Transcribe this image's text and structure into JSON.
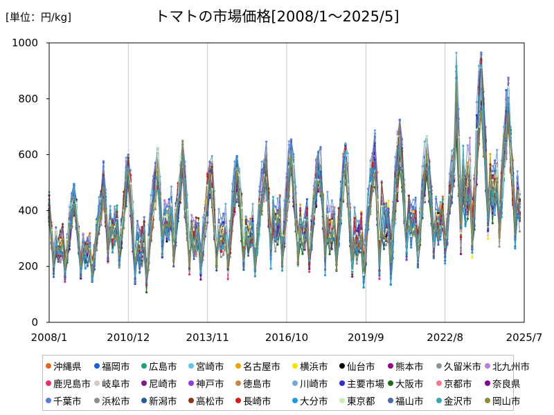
{
  "unit_label": "[単位：円/kg]",
  "title": "トマトの市場価格[2008/1～2025/5]",
  "chart_data": {
    "type": "line",
    "title": "トマトの市場価格[2008/1～2025/5]",
    "unit": "[単位：円/kg]",
    "xlabel": "",
    "ylabel": "",
    "x_ticks": [
      "2008/1",
      "2010/12",
      "2013/11",
      "2016/10",
      "2019/9",
      "2022/8",
      "2025/7"
    ],
    "x_range": [
      "2008/1",
      "2025/7"
    ],
    "y_ticks": [
      0,
      200,
      400,
      600,
      800,
      1000
    ],
    "ylim": [
      0,
      1000
    ],
    "grid": "vertical",
    "legend_position": "bottom",
    "approx_yearly_peak_max": [
      {
        "year": 2008,
        "value": 495
      },
      {
        "year": 2009,
        "value": 470
      },
      {
        "year": 2010,
        "value": 600
      },
      {
        "year": 2011,
        "value": 570
      },
      {
        "year": 2012,
        "value": 650
      },
      {
        "year": 2013,
        "value": 575
      },
      {
        "year": 2014,
        "value": 595
      },
      {
        "year": 2015,
        "value": 580
      },
      {
        "year": 2016,
        "value": 655
      },
      {
        "year": 2017,
        "value": 610
      },
      {
        "year": 2018,
        "value": 640
      },
      {
        "year": 2019,
        "value": 605
      },
      {
        "year": 2020,
        "value": 725
      },
      {
        "year": 2021,
        "value": 665
      },
      {
        "year": 2022,
        "value": 620
      },
      {
        "year": 2023,
        "value": 965
      },
      {
        "year": 2024,
        "value": 875
      },
      {
        "year": 2025,
        "value": 740
      }
    ],
    "approx_yearly_trough_min": [
      {
        "year": 2008,
        "value": 145
      },
      {
        "year": 2009,
        "value": 130
      },
      {
        "year": 2010,
        "value": 185
      },
      {
        "year": 2011,
        "value": 105
      },
      {
        "year": 2012,
        "value": 200
      },
      {
        "year": 2013,
        "value": 150
      },
      {
        "year": 2014,
        "value": 150
      },
      {
        "year": 2015,
        "value": 165
      },
      {
        "year": 2016,
        "value": 185
      },
      {
        "year": 2017,
        "value": 170
      },
      {
        "year": 2018,
        "value": 165
      },
      {
        "year": 2019,
        "value": 125
      },
      {
        "year": 2020,
        "value": 135
      },
      {
        "year": 2021,
        "value": 185
      },
      {
        "year": 2022,
        "value": 210
      },
      {
        "year": 2023,
        "value": 210
      },
      {
        "year": 2024,
        "value": 255
      },
      {
        "year": 2025,
        "value": 250
      }
    ],
    "series": [
      {
        "name": "沖縄県",
        "color": "#e8641e"
      },
      {
        "name": "福岡市",
        "color": "#1a5fe0"
      },
      {
        "name": "広島市",
        "color": "#1aa27a"
      },
      {
        "name": "宮崎市",
        "color": "#5fc4e8"
      },
      {
        "name": "名古屋市",
        "color": "#f0a400"
      },
      {
        "name": "横浜市",
        "color": "#f2e600"
      },
      {
        "name": "仙台市",
        "color": "#000000"
      },
      {
        "name": "熊本市",
        "color": "#9b008a"
      },
      {
        "name": "久留米市",
        "color": "#8c959b"
      },
      {
        "name": "北九州市",
        "color": "#b77ee0"
      },
      {
        "name": "鹿児島市",
        "color": "#e8306e"
      },
      {
        "name": "岐阜市",
        "color": "#d9c9bd"
      },
      {
        "name": "尼崎市",
        "color": "#7a1f80"
      },
      {
        "name": "神戸市",
        "color": "#8a3fe0"
      },
      {
        "name": "徳島市",
        "color": "#c28a4a"
      },
      {
        "name": "川崎市",
        "color": "#6fa8d9"
      },
      {
        "name": "主要市場",
        "color": "#2b2bd6"
      },
      {
        "name": "大阪市",
        "color": "#1d6b18"
      },
      {
        "name": "京都市",
        "color": "#f07a8e"
      },
      {
        "name": "奈良県",
        "color": "#880090"
      },
      {
        "name": "千葉市",
        "color": "#5a7ad9"
      },
      {
        "name": "浜松市",
        "color": "#8f8f8f"
      },
      {
        "name": "新潟市",
        "color": "#1f5f9a"
      },
      {
        "name": "高松市",
        "color": "#8a3a1a"
      },
      {
        "name": "長崎市",
        "color": "#d91a1a"
      },
      {
        "name": "大分市",
        "color": "#1a9ce8"
      },
      {
        "name": "東京都",
        "color": "#c8f0b4"
      },
      {
        "name": "福山市",
        "color": "#4a6aa8"
      },
      {
        "name": "金沢市",
        "color": "#3aa6b8"
      },
      {
        "name": "岡山市",
        "color": "#8c8c3a"
      }
    ]
  }
}
